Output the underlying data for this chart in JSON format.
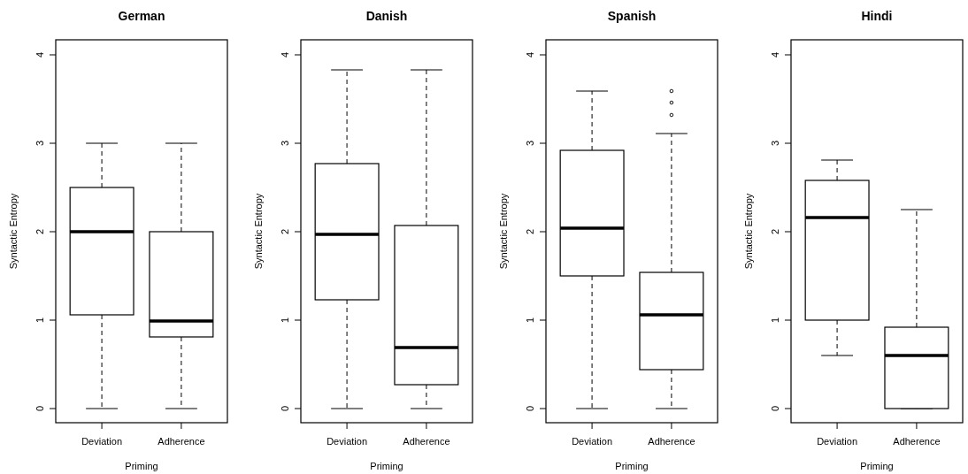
{
  "chart_data": [
    {
      "type": "box",
      "title": "German",
      "xlabel": "Priming",
      "ylabel": "Syntactic Entropy",
      "categories": [
        "Deviation",
        "Adherence"
      ],
      "ylim": [
        -0.16,
        4.17
      ],
      "yticks": [
        0,
        1,
        2,
        3,
        4
      ],
      "boxes": [
        {
          "low": 0,
          "q1": 1.06,
          "median": 2.0,
          "q3": 2.5,
          "high": 3.0
        },
        {
          "low": 0,
          "q1": 0.81,
          "median": 0.99,
          "q3": 2.0,
          "high": 3.0
        }
      ]
    },
    {
      "type": "box",
      "title": "Danish",
      "xlabel": "Priming",
      "ylabel": "Syntactic Entropy",
      "categories": [
        "Deviation",
        "Adherence"
      ],
      "ylim": [
        -0.16,
        4.17
      ],
      "yticks": [
        0,
        1,
        2,
        3,
        4
      ],
      "boxes": [
        {
          "low": 0,
          "q1": 1.23,
          "median": 1.97,
          "q3": 2.77,
          "high": 3.83
        },
        {
          "low": 0,
          "q1": 0.27,
          "median": 0.69,
          "q3": 2.07,
          "high": 3.83
        }
      ]
    },
    {
      "type": "box",
      "title": "Spanish",
      "xlabel": "Priming",
      "ylabel": "Syntactic Entropy",
      "categories": [
        "Deviation",
        "Adherence"
      ],
      "ylim": [
        -0.16,
        4.17
      ],
      "yticks": [
        0,
        1,
        2,
        3,
        4
      ],
      "boxes": [
        {
          "low": 0,
          "q1": 1.5,
          "median": 2.04,
          "q3": 2.92,
          "high": 3.59
        },
        {
          "low": 0,
          "q1": 0.44,
          "median": 1.06,
          "q3": 1.54,
          "high": 3.11,
          "outliers": [
            3.32,
            3.46,
            3.59
          ]
        }
      ]
    },
    {
      "type": "box",
      "title": "Hindi",
      "xlabel": "Priming",
      "ylabel": "Syntactic Entropy",
      "categories": [
        "Deviation",
        "Adherence"
      ],
      "ylim": [
        -0.16,
        4.17
      ],
      "yticks": [
        0,
        1,
        2,
        3,
        4
      ],
      "boxes": [
        {
          "low": 0.6,
          "q1": 1.0,
          "median": 2.16,
          "q3": 2.58,
          "high": 2.81
        },
        {
          "low": 0,
          "q1": 0,
          "median": 0.6,
          "q3": 0.92,
          "high": 2.25
        }
      ]
    }
  ]
}
